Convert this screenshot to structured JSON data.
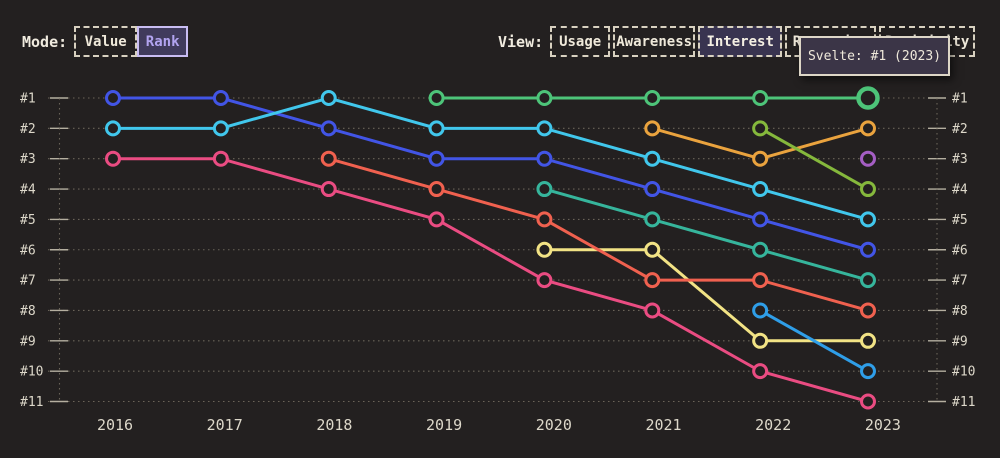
{
  "page": {
    "background": "#232020"
  },
  "controls": {
    "mode": {
      "label": "Mode:",
      "options": [
        {
          "label": "Value",
          "selected": false
        },
        {
          "label": "Rank",
          "selected": true
        }
      ]
    },
    "view": {
      "label": "View:",
      "options": [
        {
          "label": "Usage",
          "selected": false
        },
        {
          "label": "Awareness",
          "selected": false
        },
        {
          "label": "Interest",
          "selected": true
        },
        {
          "label": "Retention",
          "selected": false
        },
        {
          "label": "Positivity",
          "selected": false
        }
      ]
    }
  },
  "tooltip": {
    "text": "Svelte: #1 (2023)"
  },
  "chart_data": {
    "type": "line",
    "variant": "bump-rank",
    "title": "",
    "x_labels": [
      "2016",
      "2017",
      "2018",
      "2019",
      "2020",
      "2021",
      "2022",
      "2023"
    ],
    "y_labels": [
      "#1",
      "#2",
      "#3",
      "#4",
      "#5",
      "#6",
      "#7",
      "#8",
      "#9",
      "#10",
      "#11"
    ],
    "y_axis_inverted": true,
    "grid": "horizontal-dotted",
    "legend": "none",
    "series": [
      {
        "id": "blue",
        "label": "",
        "color": "#4255e6",
        "points": [
          [
            2016,
            1
          ],
          [
            2017,
            1
          ],
          [
            2018,
            2
          ],
          [
            2019,
            3
          ],
          [
            2020,
            3
          ],
          [
            2021,
            4
          ],
          [
            2022,
            5
          ],
          [
            2023,
            6
          ]
        ]
      },
      {
        "id": "cyan",
        "label": "",
        "color": "#41c7ec",
        "points": [
          [
            2016,
            2
          ],
          [
            2017,
            2
          ],
          [
            2018,
            1
          ],
          [
            2019,
            2
          ],
          [
            2020,
            2
          ],
          [
            2021,
            3
          ],
          [
            2022,
            4
          ],
          [
            2023,
            5
          ]
        ]
      },
      {
        "id": "pink",
        "label": "",
        "color": "#ea4c82",
        "points": [
          [
            2016,
            3
          ],
          [
            2017,
            3
          ],
          [
            2018,
            4
          ],
          [
            2019,
            5
          ],
          [
            2020,
            7
          ],
          [
            2021,
            8
          ],
          [
            2022,
            10
          ],
          [
            2023,
            11
          ]
        ]
      },
      {
        "id": "yellow",
        "label": "",
        "color": "#f2e385",
        "points": [
          [
            2020,
            6
          ],
          [
            2021,
            6
          ],
          [
            2022,
            9
          ],
          [
            2023,
            9
          ]
        ]
      },
      {
        "id": "salmon",
        "label": "",
        "color": "#f0614f",
        "points": [
          [
            2018,
            3
          ],
          [
            2019,
            4
          ],
          [
            2020,
            5
          ],
          [
            2021,
            7
          ],
          [
            2022,
            7
          ],
          [
            2023,
            8
          ]
        ]
      },
      {
        "id": "teal",
        "label": "",
        "color": "#36b59c",
        "points": [
          [
            2020,
            4
          ],
          [
            2021,
            5
          ],
          [
            2022,
            6
          ],
          [
            2023,
            7
          ]
        ]
      },
      {
        "id": "svelte",
        "label": "Svelte",
        "color": "#4dc479",
        "points": [
          [
            2019,
            1
          ],
          [
            2020,
            1
          ],
          [
            2021,
            1
          ],
          [
            2022,
            1
          ],
          [
            2023,
            1
          ]
        ]
      },
      {
        "id": "orange",
        "label": "",
        "color": "#eaa33e",
        "points": [
          [
            2021,
            2
          ],
          [
            2022,
            3
          ],
          [
            2023,
            2
          ]
        ]
      },
      {
        "id": "lime",
        "label": "",
        "color": "#85b83c",
        "points": [
          [
            2022,
            2
          ],
          [
            2023,
            4
          ]
        ]
      },
      {
        "id": "azure",
        "label": "",
        "color": "#2f9ee8",
        "points": [
          [
            2022,
            8
          ],
          [
            2023,
            10
          ]
        ]
      },
      {
        "id": "purple",
        "label": "",
        "color": "#a55ec4",
        "points": [
          [
            2023,
            3
          ]
        ]
      }
    ],
    "highlight": {
      "series_id": "svelte",
      "label": "Svelte",
      "year": 2023,
      "rank": 1
    },
    "colors": {
      "background": "#232020",
      "grid": "#7d7668",
      "axis_tick": "#b5afa0",
      "axis_label": "#ddd8ca",
      "selected_fill": "#393450",
      "selected_accent": "#b2a4f0",
      "tooltip_border": "#ddd6c7",
      "tooltip_background": "#3b3547"
    }
  }
}
